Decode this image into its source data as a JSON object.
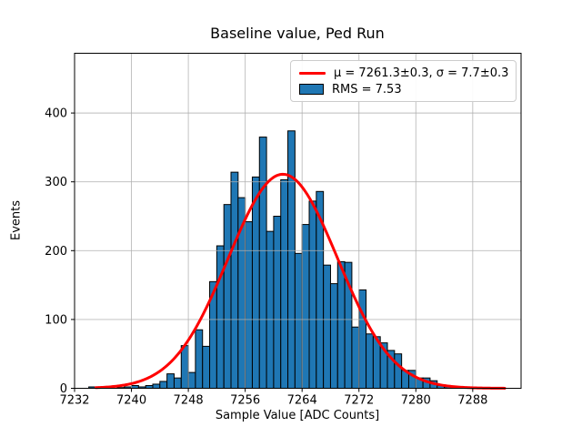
{
  "title": "Baseline value, Ped Run",
  "chart_data": {
    "type": "histogram",
    "title": "Baseline value, Ped Run",
    "xlabel": "Sample Value [ADC Counts]",
    "ylabel": "Events",
    "bin_start": 7234,
    "bin_width": 1,
    "counts": [
      2,
      0,
      0,
      0,
      1,
      2,
      4,
      2,
      4,
      6,
      10,
      21,
      15,
      62,
      23,
      85,
      61,
      155,
      207,
      267,
      314,
      277,
      242,
      307,
      365,
      228,
      250,
      303,
      374,
      196,
      238,
      272,
      286,
      179,
      152,
      184,
      183,
      89,
      143,
      79,
      75,
      66,
      55,
      50,
      26,
      26,
      15,
      15,
      11,
      4,
      2
    ],
    "x_ticks": [
      7232,
      7240,
      7248,
      7256,
      7264,
      7272,
      7280,
      7288
    ],
    "y_ticks": [
      0,
      100,
      200,
      300,
      400
    ],
    "xlim": [
      7232,
      7294.8
    ],
    "ylim": [
      0,
      486.8
    ],
    "grid": true,
    "grid_color": "#b0b0b0",
    "bar_color": "#1f77b4",
    "bar_edge_color": "#000000",
    "fit": {
      "type": "gaussian",
      "mu": 7261.3,
      "mu_err": 0.3,
      "sigma": 7.7,
      "sigma_err": 0.3,
      "amplitude": 311,
      "color": "#ff0000",
      "x_range": [
        7235,
        7292.5
      ]
    },
    "stats": {
      "rms": 7.53
    },
    "legend": {
      "position": "upper right",
      "entries": [
        {
          "swatch": "line",
          "color": "#ff0000",
          "label": "μ = 7261.3±0.3, σ = 7.7±0.3"
        },
        {
          "swatch": "patch",
          "color": "#1f77b4",
          "label": "RMS = 7.53"
        }
      ]
    }
  }
}
